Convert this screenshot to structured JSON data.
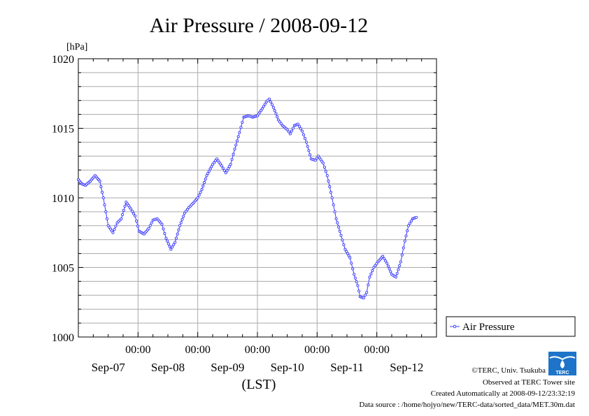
{
  "chart_data": {
    "type": "line",
    "title": "Air Pressure / 2008-09-12",
    "ylabel": "[hPa]",
    "xlabel": "(LST)",
    "ylim": [
      1000,
      1020
    ],
    "yticks": [
      1000,
      1005,
      1010,
      1015,
      1020
    ],
    "xlim_days": [
      0,
      6
    ],
    "time_tick_labels": [
      "00:00",
      "00:00",
      "00:00",
      "00:00",
      "00:00"
    ],
    "date_labels": [
      "Sep-07",
      "Sep-08",
      "Sep-09",
      "Sep-10",
      "Sep-11",
      "Sep-12"
    ],
    "grid": true,
    "legend": "right",
    "series": [
      {
        "name": "Air Pressure",
        "color": "#3b3bff",
        "points": [
          [
            0.0,
            1011.3
          ],
          [
            0.06,
            1011.0
          ],
          [
            0.12,
            1010.9
          ],
          [
            0.2,
            1011.2
          ],
          [
            0.28,
            1011.6
          ],
          [
            0.36,
            1011.2
          ],
          [
            0.42,
            1010.0
          ],
          [
            0.5,
            1008.0
          ],
          [
            0.58,
            1007.5
          ],
          [
            0.65,
            1008.2
          ],
          [
            0.72,
            1008.5
          ],
          [
            0.8,
            1009.7
          ],
          [
            0.88,
            1009.2
          ],
          [
            0.95,
            1008.7
          ],
          [
            1.02,
            1007.6
          ],
          [
            1.1,
            1007.4
          ],
          [
            1.18,
            1007.8
          ],
          [
            1.25,
            1008.4
          ],
          [
            1.32,
            1008.5
          ],
          [
            1.4,
            1008.1
          ],
          [
            1.47,
            1007.1
          ],
          [
            1.55,
            1006.3
          ],
          [
            1.62,
            1006.8
          ],
          [
            1.7,
            1008.0
          ],
          [
            1.78,
            1008.9
          ],
          [
            1.85,
            1009.3
          ],
          [
            1.92,
            1009.6
          ],
          [
            2.0,
            1010.0
          ],
          [
            2.07,
            1010.6
          ],
          [
            2.15,
            1011.6
          ],
          [
            2.25,
            1012.4
          ],
          [
            2.32,
            1012.8
          ],
          [
            2.4,
            1012.3
          ],
          [
            2.47,
            1011.8
          ],
          [
            2.55,
            1012.4
          ],
          [
            2.62,
            1013.5
          ],
          [
            2.7,
            1014.7
          ],
          [
            2.77,
            1015.8
          ],
          [
            2.85,
            1015.9
          ],
          [
            2.92,
            1015.8
          ],
          [
            3.0,
            1015.9
          ],
          [
            3.08,
            1016.4
          ],
          [
            3.15,
            1016.9
          ],
          [
            3.2,
            1017.1
          ],
          [
            3.27,
            1016.5
          ],
          [
            3.35,
            1015.6
          ],
          [
            3.42,
            1015.2
          ],
          [
            3.5,
            1014.9
          ],
          [
            3.55,
            1014.6
          ],
          [
            3.62,
            1015.2
          ],
          [
            3.68,
            1015.3
          ],
          [
            3.75,
            1014.8
          ],
          [
            3.82,
            1014.0
          ],
          [
            3.9,
            1012.8
          ],
          [
            3.97,
            1012.7
          ],
          [
            4.02,
            1013.0
          ],
          [
            4.1,
            1012.5
          ],
          [
            4.17,
            1011.6
          ],
          [
            4.25,
            1010.0
          ],
          [
            4.32,
            1008.5
          ],
          [
            4.4,
            1007.3
          ],
          [
            4.47,
            1006.3
          ],
          [
            4.55,
            1005.7
          ],
          [
            4.62,
            1004.5
          ],
          [
            4.68,
            1003.7
          ],
          [
            4.72,
            1002.9
          ],
          [
            4.78,
            1002.8
          ],
          [
            4.83,
            1003.2
          ],
          [
            4.88,
            1004.3
          ],
          [
            4.95,
            1005.0
          ],
          [
            5.02,
            1005.4
          ],
          [
            5.1,
            1005.8
          ],
          [
            5.17,
            1005.3
          ],
          [
            5.25,
            1004.5
          ],
          [
            5.32,
            1004.3
          ],
          [
            5.4,
            1005.4
          ],
          [
            5.47,
            1006.9
          ],
          [
            5.53,
            1008.0
          ],
          [
            5.6,
            1008.5
          ],
          [
            5.66,
            1008.6
          ]
        ]
      }
    ]
  },
  "legend": {
    "label": "Air Pressure"
  },
  "footer": {
    "copyright": "©TERC, Univ. Tsukuba",
    "observed": "Observed at TERC Tower site",
    "created": "Created Automatically at 2008-09-12/23:32:19",
    "source": "Data source : /home/hojyo/new/TERC-data/sorted_data/MET.30m.dat"
  },
  "logo": {
    "text": "TERC",
    "color": "#1e74c8"
  }
}
